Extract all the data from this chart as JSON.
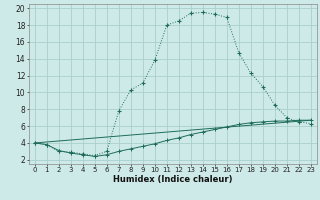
{
  "xlabel": "Humidex (Indice chaleur)",
  "bg_color": "#ceeae8",
  "grid_color": "#aacfcc",
  "line_color": "#1e6b5c",
  "xlim": [
    -0.5,
    23.5
  ],
  "ylim": [
    1.5,
    20.5
  ],
  "xtick_vals": [
    0,
    1,
    2,
    3,
    4,
    5,
    6,
    7,
    8,
    9,
    10,
    11,
    12,
    13,
    14,
    15,
    16,
    17,
    18,
    19,
    20,
    21,
    22,
    23
  ],
  "ytick_vals": [
    2,
    4,
    6,
    8,
    10,
    12,
    14,
    16,
    18,
    20
  ],
  "line1_x": [
    0,
    1,
    2,
    3,
    4,
    5,
    6,
    7,
    8,
    9,
    10,
    11,
    12,
    13,
    14,
    15,
    16,
    17,
    18,
    19,
    20,
    21,
    22,
    23
  ],
  "line1_y": [
    4.0,
    3.8,
    3.0,
    2.9,
    2.7,
    2.5,
    3.0,
    7.8,
    10.3,
    11.1,
    13.8,
    18.0,
    18.5,
    19.4,
    19.5,
    19.3,
    18.9,
    14.7,
    12.3,
    10.7,
    8.5,
    7.0,
    6.5,
    6.3
  ],
  "line2_x": [
    0,
    1,
    2,
    3,
    4,
    5,
    6,
    7,
    8,
    9,
    10,
    11,
    12,
    13,
    14,
    15,
    16,
    17,
    18,
    19,
    20,
    21,
    22,
    23
  ],
  "line2_y": [
    4.0,
    3.8,
    3.1,
    2.8,
    2.6,
    2.4,
    2.6,
    3.0,
    3.3,
    3.6,
    3.9,
    4.3,
    4.6,
    5.0,
    5.3,
    5.6,
    5.9,
    6.2,
    6.4,
    6.5,
    6.6,
    6.6,
    6.7,
    6.7
  ],
  "line3_x": [
    0,
    23
  ],
  "line3_y": [
    4.0,
    6.7
  ],
  "xlabel_fontsize": 6,
  "tick_fontsize": 5
}
